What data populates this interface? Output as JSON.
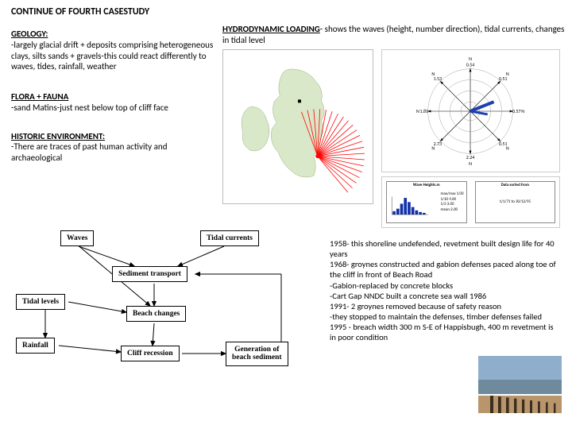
{
  "title": "CONTINUE OF FOURTH CASESTUDY",
  "geology": {
    "head": "GEOLOGY:",
    "body": "-largely glacial drift + deposits comprising heterogeneous clays, silts sands + gravels-this could react differently to waves, tides, rainfall, weather"
  },
  "flora": {
    "head": "FLORA + FAUNA",
    "body": "-sand Matins-just nest below top of cliff face"
  },
  "historic": {
    "head": "HISTORIC ENVIRONMENT:",
    "body": "-There are traces of past human activity and archaeological"
  },
  "hydro": {
    "head": "HYDRODYNAMIC LOADING",
    "rest": "- shows the waves (height, number direction), tidal currents, changes in tidal level"
  },
  "map": {
    "land_color": "#d9e8c8",
    "sea_color": "#ffffff",
    "marker_color": "#ff0000",
    "rays": 22
  },
  "rose": {
    "labels_deg": [
      "N",
      "N",
      "N",
      "N",
      "N",
      "N",
      "N",
      "N"
    ],
    "tick_labels": [
      "0.54",
      "0.51",
      "0.57",
      "0.51",
      "2.24",
      "2.73",
      "1.81",
      "1.53"
    ],
    "circle_color": "#888",
    "needle_color": "#1e40af",
    "axis_color": "#000"
  },
  "sub_charts": {
    "left": {
      "title": "Wave Heights.m",
      "bar_color": "#1030a8",
      "lines": [
        "max/max 1.00",
        "1/10 4.00",
        "1/3 3.00",
        "mean 2.00"
      ]
    },
    "right": {
      "title": "Data sorted from",
      "line": "1/1/71   to 30/12/95"
    }
  },
  "flow": {
    "nodes": {
      "waves": "Waves",
      "tidal_currents": "Tidal currents",
      "sediment": "Sediment transport",
      "tidal_levels": "Tidal levels",
      "beach": "Beach changes",
      "rainfall": "Rainfall",
      "cliff": "Cliff recession",
      "generation": "Generation of\nbeach sediment"
    },
    "line_color": "#000000"
  },
  "history": {
    "lines": [
      "1958- this shoreline undefended, revetment built design life for 40 years",
      "1968- groynes constructed and gabion defenses paced along toe of the cliff in front of Beach Road",
      "-Gabion-replaced by concrete blocks",
      "-Cart Gap NNDC built a concrete sea wall 1986",
      "1991- 2 groynes removed because of safety reason",
      "-they stopped to maintain the defenses, timber defenses failed 1995 - breach width 300 m S-E of Happisbugh, 400 m revetment is in poor condition"
    ]
  },
  "photo": {
    "sky_color": "#8faecb",
    "sea_color": "#6f8a9c",
    "foam_color": "#ffffff",
    "sand_color": "#b8956b",
    "post_color": "#3a2e20"
  }
}
